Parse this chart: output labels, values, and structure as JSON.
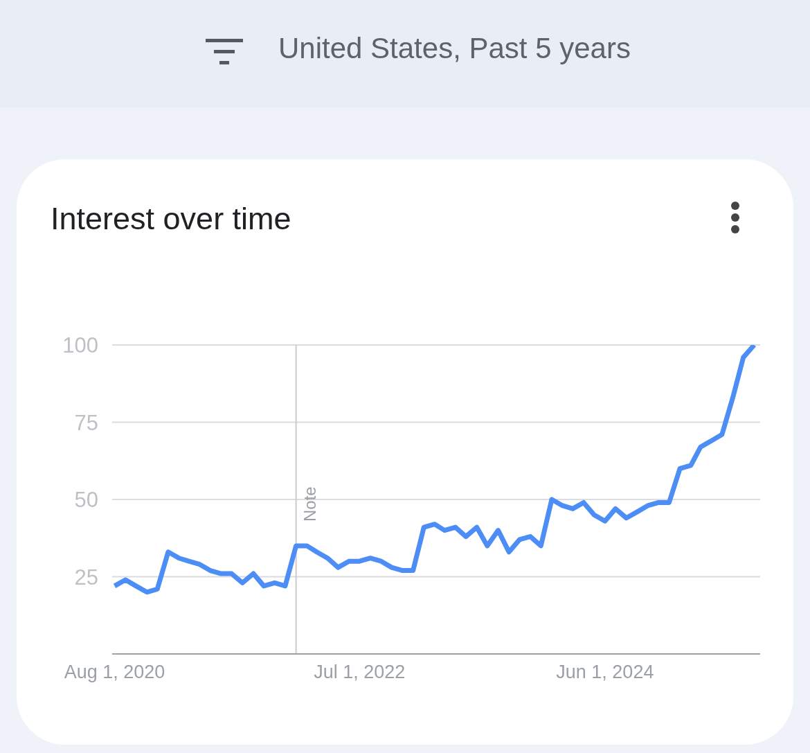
{
  "chart_data": {
    "type": "line",
    "subtitle": "United States, Past 5 years",
    "title": "Interest over time",
    "x": [
      "2020-08-01",
      "2020-09-01",
      "2020-10-01",
      "2020-11-01",
      "2020-12-01",
      "2021-01-01",
      "2021-02-01",
      "2021-03-01",
      "2021-04-01",
      "2021-05-01",
      "2021-06-01",
      "2021-07-01",
      "2021-08-01",
      "2021-09-01",
      "2021-10-01",
      "2021-11-01",
      "2021-12-01",
      "2022-01-01",
      "2022-02-01",
      "2022-03-01",
      "2022-04-01",
      "2022-05-01",
      "2022-06-01",
      "2022-07-01",
      "2022-08-01",
      "2022-09-01",
      "2022-10-01",
      "2022-11-01",
      "2022-12-01",
      "2023-01-01",
      "2023-02-01",
      "2023-03-01",
      "2023-04-01",
      "2023-05-01",
      "2023-06-01",
      "2023-07-01",
      "2023-08-01",
      "2023-09-01",
      "2023-10-01",
      "2023-11-01",
      "2023-12-01",
      "2024-01-01",
      "2024-02-01",
      "2024-03-01",
      "2024-04-01",
      "2024-05-01",
      "2024-06-01",
      "2024-07-01",
      "2024-08-01",
      "2024-09-01",
      "2024-10-01",
      "2024-11-01",
      "2024-12-01",
      "2025-01-01",
      "2025-02-01",
      "2025-03-01",
      "2025-04-01",
      "2025-05-01",
      "2025-06-01",
      "2025-07-01",
      "2025-08-01"
    ],
    "series": [
      {
        "color": "#4c8df6",
        "values": [
          22,
          24,
          22,
          20,
          21,
          33,
          31,
          30,
          29,
          27,
          26,
          26,
          23,
          26,
          22,
          23,
          22,
          35,
          35,
          33,
          31,
          28,
          30,
          30,
          31,
          30,
          28,
          27,
          27,
          41,
          42,
          40,
          41,
          38,
          41,
          35,
          40,
          33,
          37,
          38,
          35,
          50,
          48,
          47,
          49,
          45,
          43,
          47,
          44,
          46,
          48,
          49,
          49,
          60,
          61,
          67,
          69,
          71,
          83,
          96,
          100
        ]
      }
    ],
    "xlim": [
      "2020-07-25",
      "2025-08-18"
    ],
    "xticks": [
      {
        "value": "2020-08-01",
        "label": "Aug 1, 2020"
      },
      {
        "value": "2022-07-01",
        "label": "Jul 1, 2022"
      },
      {
        "value": "2024-06-01",
        "label": "Jun 1, 2024"
      }
    ],
    "ylim": [
      0,
      100
    ],
    "yticks": [
      25,
      50,
      75,
      100
    ],
    "grid": "y",
    "marker": "none",
    "line_style": "solid",
    "ref_lines": [
      {
        "axis": "x",
        "value": "2022-01-01",
        "label": "Note",
        "color": "#cccccc"
      }
    ]
  }
}
